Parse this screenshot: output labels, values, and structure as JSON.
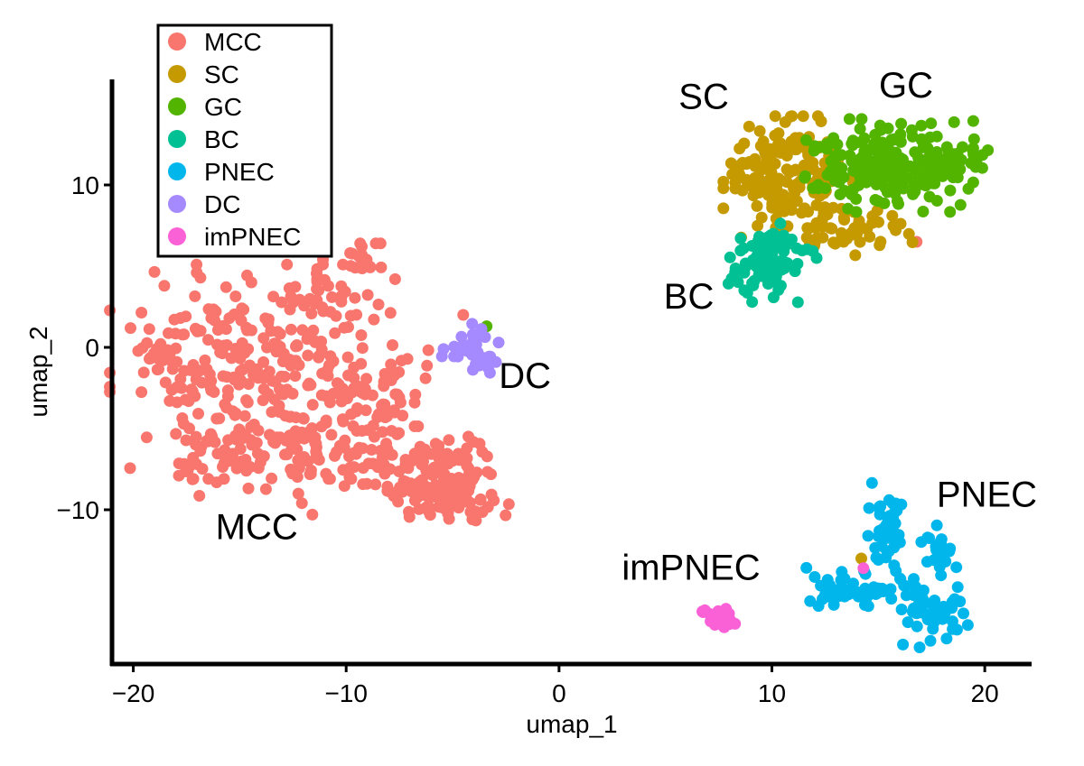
{
  "chart_data": {
    "type": "scatter",
    "title": "",
    "xlabel": "umap_1",
    "ylabel": "umap_2",
    "xlim": [
      -21,
      22.2
    ],
    "ylim": [
      -19.5,
      16.5
    ],
    "xticks": [
      -20,
      -10,
      0,
      10,
      20
    ],
    "xtick_labels": [
      "−20",
      "−10",
      "0",
      "10",
      "20"
    ],
    "yticks": [
      10,
      0,
      -10
    ],
    "ytick_labels": [
      "10",
      "0",
      "−10"
    ],
    "grid": false,
    "legend_position": "top-left",
    "series": [
      {
        "name": "MCC",
        "color": "#F8766D",
        "regions": [
          {
            "cx": -14.5,
            "cy": -1.5,
            "sx": 3.0,
            "sy": 3.0,
            "n": 260
          },
          {
            "cx": -18.5,
            "cy": -1.0,
            "sx": 0.8,
            "sy": 0.8,
            "n": 15
          },
          {
            "cx": -11.0,
            "cy": 3.0,
            "sx": 1.2,
            "sy": 1.2,
            "n": 30
          },
          {
            "cx": -9.0,
            "cy": 5.3,
            "sx": 0.7,
            "sy": 0.5,
            "n": 18
          },
          {
            "cx": -9.8,
            "cy": -5.5,
            "sx": 1.5,
            "sy": 1.5,
            "n": 45
          },
          {
            "cx": -8.5,
            "cy": -2.5,
            "sx": 1.2,
            "sy": 1.2,
            "n": 25
          },
          {
            "cx": -6.5,
            "cy": -7.5,
            "sx": 1.5,
            "sy": 1.2,
            "n": 80
          },
          {
            "cx": -5.2,
            "cy": -9.0,
            "sx": 1.3,
            "sy": 1.0,
            "n": 75
          },
          {
            "cx": -7.5,
            "cy": -2.0,
            "sx": 1.0,
            "sy": 1.0,
            "n": 15
          },
          {
            "cx": -15.5,
            "cy": -6.5,
            "sx": 1.5,
            "sy": 1.2,
            "n": 40
          },
          {
            "cx": -12.5,
            "cy": -7.0,
            "sx": 1.5,
            "sy": 1.5,
            "n": 40
          }
        ],
        "extra_points": [
          [
            16.8,
            6.5
          ],
          [
            -4.5,
            2.0
          ]
        ]
      },
      {
        "name": "SC",
        "color": "#C49A00",
        "regions": [
          {
            "cx": 10.8,
            "cy": 10.5,
            "sx": 1.4,
            "sy": 1.7,
            "n": 170
          },
          {
            "cx": 13.5,
            "cy": 7.2,
            "sx": 1.5,
            "sy": 0.9,
            "n": 45
          },
          {
            "cx": 15.8,
            "cy": 7.0,
            "sx": 0.7,
            "sy": 0.5,
            "n": 10
          }
        ],
        "extra_points": [
          [
            14.2,
            -13.0
          ]
        ]
      },
      {
        "name": "GC",
        "color": "#53B400",
        "regions": [
          {
            "cx": 15.5,
            "cy": 11.2,
            "sx": 1.8,
            "sy": 1.3,
            "n": 210
          },
          {
            "cx": 18.8,
            "cy": 11.5,
            "sx": 0.8,
            "sy": 0.6,
            "n": 25
          }
        ],
        "extra_points": [
          [
            -3.4,
            1.3
          ]
        ]
      },
      {
        "name": "BC",
        "color": "#00C094",
        "regions": [
          {
            "cx": 9.6,
            "cy": 5.2,
            "sx": 0.8,
            "sy": 1.1,
            "n": 70
          },
          {
            "cx": 11.0,
            "cy": 5.8,
            "sx": 0.5,
            "sy": 0.5,
            "n": 12
          }
        ],
        "extra_points": []
      },
      {
        "name": "PNEC",
        "color": "#00B6EB",
        "regions": [
          {
            "cx": 13.6,
            "cy": -14.9,
            "sx": 0.9,
            "sy": 0.6,
            "n": 45
          },
          {
            "cx": 15.4,
            "cy": -11.0,
            "sx": 0.4,
            "sy": 1.6,
            "n": 40
          },
          {
            "cx": 17.9,
            "cy": -12.5,
            "sx": 0.4,
            "sy": 0.7,
            "n": 25
          },
          {
            "cx": 17.5,
            "cy": -16.5,
            "sx": 0.8,
            "sy": 0.9,
            "n": 45
          },
          {
            "cx": 16.3,
            "cy": -14.6,
            "sx": 0.4,
            "sy": 0.4,
            "n": 8
          }
        ],
        "extra_points": []
      },
      {
        "name": "DC",
        "color": "#A58AFF",
        "regions": [
          {
            "cx": -3.8,
            "cy": -0.2,
            "sx": 0.45,
            "sy": 0.75,
            "n": 28
          },
          {
            "cx": -5.2,
            "cy": -0.3,
            "sx": 0.25,
            "sy": 0.3,
            "n": 4
          }
        ],
        "extra_points": []
      },
      {
        "name": "imPNEC",
        "color": "#FB61D7",
        "regions": [
          {
            "cx": 7.5,
            "cy": -16.7,
            "sx": 0.35,
            "sy": 0.3,
            "n": 35
          }
        ],
        "extra_points": [
          [
            14.3,
            -13.6
          ]
        ]
      }
    ],
    "annotations": [
      {
        "text": "MCC",
        "x": -14.2,
        "y": -11.8
      },
      {
        "text": "DC",
        "x": -1.6,
        "y": -2.5
      },
      {
        "text": "SC",
        "x": 6.8,
        "y": 14.7
      },
      {
        "text": "GC",
        "x": 16.3,
        "y": 15.4
      },
      {
        "text": "BC",
        "x": 6.1,
        "y": 2.4
      },
      {
        "text": "PNEC",
        "x": 20.1,
        "y": -9.8
      },
      {
        "text": "imPNEC",
        "x": 6.2,
        "y": -14.3
      }
    ]
  }
}
